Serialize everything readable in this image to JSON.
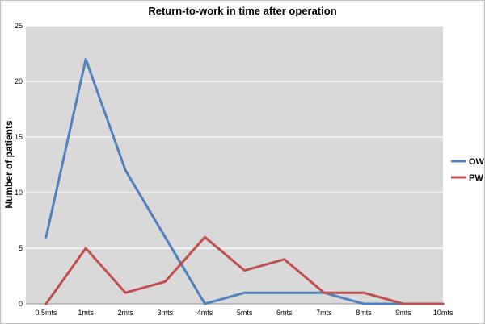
{
  "chart_data": {
    "type": "line",
    "title": "Return-to-work in time after operation",
    "xlabel": "",
    "ylabel": "Number of patients",
    "categories": [
      "0.5mts",
      "1mts",
      "2mts",
      "3mts",
      "4mts",
      "5mts",
      "6mts",
      "7mts",
      "8mts",
      "9mts",
      "10mts"
    ],
    "ylim": [
      0,
      25
    ],
    "yticks": [
      "0",
      "5",
      "10",
      "15",
      "20",
      "25"
    ],
    "grid": true,
    "legend_position": "right",
    "series": [
      {
        "name": "OW",
        "color": "#4f81bd",
        "values": [
          6,
          22,
          12,
          6,
          0,
          1,
          1,
          1,
          0,
          0,
          0
        ]
      },
      {
        "name": "PW",
        "color": "#c0504d",
        "values": [
          0,
          5,
          1,
          2,
          6,
          3,
          4,
          1,
          1,
          0,
          0
        ]
      }
    ],
    "plot_background": "#d9d9d9",
    "gridline_color": "#ffffff"
  }
}
